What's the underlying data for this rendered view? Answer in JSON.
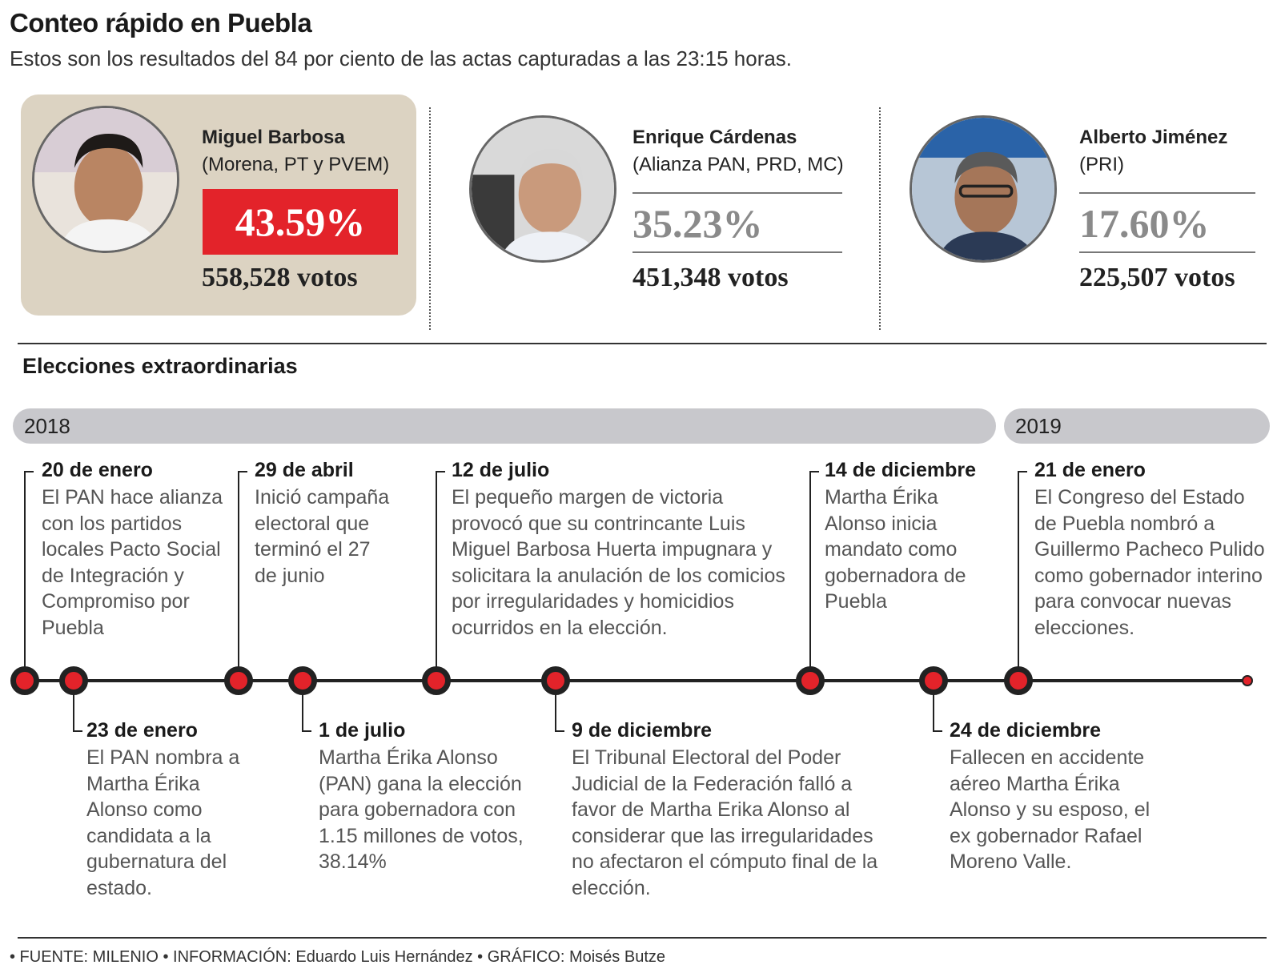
{
  "header": {
    "title": "Conteo rápido en Puebla",
    "subtitle": "Estos son los resultados del 84 por ciento de las actas capturadas a las 23:15 horas."
  },
  "candidates": [
    {
      "name": "Miguel Barbosa",
      "party": "(Morena, PT y PVEM)",
      "percent": "43.59%",
      "votes": "558,528 votos",
      "winner": true
    },
    {
      "name": "Enrique Cárdenas",
      "party": "(Alianza PAN, PRD, MC)",
      "percent": "35.23%",
      "votes": "451,348 votos",
      "winner": false
    },
    {
      "name": "Alberto Jiménez",
      "party": "(PRI)",
      "percent": "17.60%",
      "votes": "225,507 votos",
      "winner": false
    }
  ],
  "colors": {
    "accent": "#e3232a",
    "winner_card": "#dcd3c2",
    "year_bar": "#c8c8cc"
  },
  "timeline": {
    "title": "Elecciones extraordinarias",
    "years": [
      "2018",
      "2019"
    ],
    "events": [
      {
        "date": "20 de enero",
        "text": "El PAN hace alianza con los partidos locales Pacto Social de Integración y Compromiso por Puebla"
      },
      {
        "date": "23 de enero",
        "text": "El PAN nombra a Martha Érika Alonso como candidata a la gubernatura del estado."
      },
      {
        "date": "29 de abril",
        "text": "Inició campaña electoral que terminó el 27 de junio"
      },
      {
        "date": "1 de julio",
        "text": "Martha Érika Alonso (PAN) gana la elección para gobernadora con 1.15 millones de votos, 38.14%"
      },
      {
        "date": "12 de julio",
        "text": "El pequeño margen de victoria provocó que su contrincante Luis Miguel Barbosa Huerta impugnara y solicitara la anulación de los comicios por irregularidades y homicidios ocurridos en la elección."
      },
      {
        "date": "9 de diciembre",
        "text": "El Tribunal Electoral del Poder Judicial de la Federación falló a favor de Martha Erika Alonso al considerar que las irregularidades no afectaron el cómputo final de la elección."
      },
      {
        "date": "14 de diciembre",
        "text": "Martha Érika Alonso inicia mandato como gobernadora de Puebla"
      },
      {
        "date": "24 de diciembre",
        "text": "Fallecen en accidente aéreo Martha Érika Alonso y su esposo, el ex gobernador Rafael Moreno Valle."
      },
      {
        "date": "21 de enero",
        "text": "El Congreso del Estado de Puebla nombró a Guillermo Pacheco Pulido como gobernador interino para convocar nuevas elecciones."
      }
    ]
  },
  "footer": {
    "credits": "• FUENTE: MILENIO • INFORMACIÓN: Eduardo Luis Hernández • GRÁFICO: Moisés Butze"
  }
}
